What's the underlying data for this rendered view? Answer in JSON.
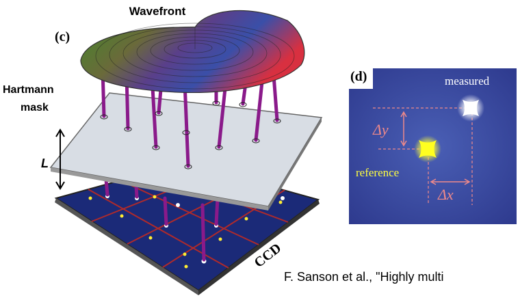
{
  "panel_c": {
    "label": "(c)",
    "wavefront": "Wavefront",
    "mask": [
      "Hartmann",
      "mask"
    ],
    "distance": "L",
    "detector": "CCD"
  },
  "panel_d": {
    "label": "(d)",
    "measured": "measured",
    "dy": "Δy",
    "reference": "reference",
    "dx": "Δx"
  },
  "caption": "F. Sanson et al., \"Highly multi"
}
